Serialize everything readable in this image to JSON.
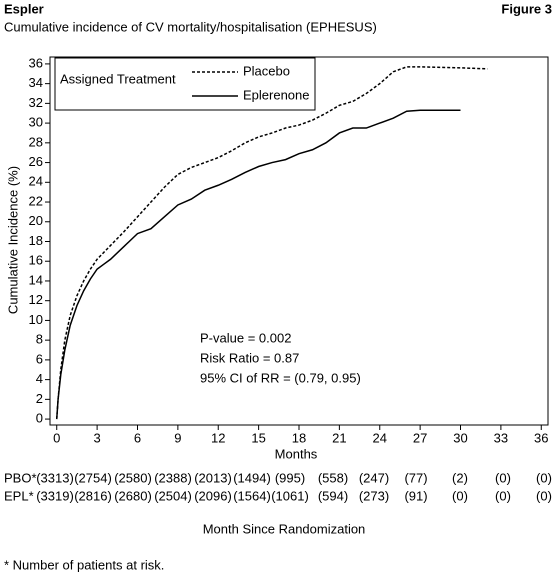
{
  "chart_data": {
    "type": "line",
    "header_left": "Espler",
    "header_right": "Figure 3",
    "title": "Cumulative incidence of CV mortality/hospitalisation (EPHESUS)",
    "y_label": "Cumulative Incidence (%)",
    "x_label": "Months",
    "xlim": [
      -0.5,
      36.5
    ],
    "xticks": [
      0,
      3,
      6,
      9,
      12,
      15,
      18,
      21,
      24,
      27,
      30,
      33,
      36
    ],
    "ylim": [
      -0.6,
      36.7
    ],
    "yticks": [
      0,
      2,
      4,
      6,
      8,
      10,
      12,
      14,
      16,
      18,
      20,
      22,
      24,
      26,
      28,
      30,
      32,
      34,
      36
    ],
    "legend_title": "Assigned Treatment",
    "series": [
      {
        "name": "Placebo",
        "color": "#000000",
        "style": "dashed",
        "x": [
          0,
          0.1,
          0.3,
          0.6,
          1,
          1.5,
          2,
          2.5,
          3,
          4,
          5,
          6,
          7,
          8,
          9,
          10,
          11,
          12,
          13,
          14,
          15,
          16,
          17,
          18,
          19,
          20,
          21,
          22,
          23,
          24,
          25,
          26,
          27,
          30,
          32
        ],
        "values": [
          0,
          2,
          5,
          8,
          10.5,
          12.5,
          14,
          15.2,
          16.2,
          17.6,
          19,
          20.5,
          22,
          23.5,
          24.8,
          25.5,
          26,
          26.5,
          27.2,
          28,
          28.6,
          29,
          29.5,
          29.8,
          30.3,
          31,
          31.8,
          32.2,
          33,
          34,
          35.2,
          35.7,
          35.7,
          35.6,
          35.5
        ]
      },
      {
        "name": "Eplerenone",
        "color": "#000000",
        "style": "solid",
        "x": [
          0,
          0.1,
          0.3,
          0.6,
          1,
          1.5,
          2,
          2.5,
          3,
          3.5,
          4,
          5,
          6,
          7,
          8,
          9,
          10,
          11,
          12,
          13,
          14,
          15,
          16,
          17,
          18,
          19,
          20,
          21,
          22,
          23,
          24,
          25,
          26,
          27,
          30
        ],
        "values": [
          0,
          2,
          4.5,
          7,
          9.5,
          11.5,
          13,
          14.2,
          15.2,
          15.7,
          16.2,
          17.5,
          18.8,
          19.3,
          20.5,
          21.7,
          22.3,
          23.2,
          23.7,
          24.3,
          25,
          25.6,
          26,
          26.3,
          26.9,
          27.3,
          28,
          29,
          29.5,
          29.5,
          30,
          30.5,
          31.2,
          31.3,
          31.3
        ]
      }
    ],
    "annotations": [
      "P-value = 0.002",
      "Risk Ratio = 0.87",
      "95% CI of RR = (0.79, 0.95)"
    ],
    "risk_table": {
      "title": "Month Since Randomization",
      "rows": [
        {
          "label": "PBO*",
          "values": [
            "(3313)",
            "(2754)",
            "(2580)",
            "(2388)",
            "(2013)",
            "(1494)",
            "(995)",
            "(558)",
            "(247)",
            "(77)",
            "(2)",
            "(0)",
            "(0)"
          ]
        },
        {
          "label": "EPL*",
          "values": [
            "(3319)",
            "(2816)",
            "(2680)",
            "(2504)",
            "(2096)",
            "(1564)",
            "(1061)",
            "(594)",
            "(273)",
            "(91)",
            "(0)",
            "(0)",
            "(0)"
          ]
        }
      ]
    },
    "footnote": "* Number of patients at risk."
  }
}
